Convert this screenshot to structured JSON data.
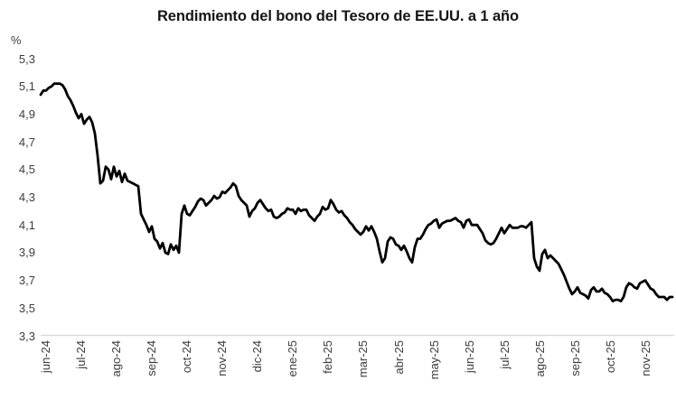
{
  "chart": {
    "title": "Rendimiento del bono del Tesoro de EE.UU. a 1 año",
    "y_unit": "%"
  },
  "chart_data": {
    "type": "line",
    "title": "Rendimiento del bono del Tesoro de EE.UU. a 1 año",
    "xlabel": "",
    "ylabel": "%",
    "ylim": [
      3.3,
      5.3
    ],
    "y_tick_step": 0.2,
    "y_tick_labels": [
      "5,3",
      "5,1",
      "4,9",
      "4,7",
      "4,5",
      "4,3",
      "4,1",
      "3,9",
      "3,7",
      "3,5",
      "3,3"
    ],
    "y_tick_values": [
      5.3,
      5.1,
      4.9,
      4.7,
      4.5,
      4.3,
      4.1,
      3.9,
      3.7,
      3.5,
      3.3
    ],
    "x_tick_labels": [
      "jun-24",
      "jul-24",
      "ago-24",
      "sep-24",
      "oct-24",
      "nov-24",
      "dic-24",
      "ene-25",
      "feb-25",
      "mar-25",
      "abr-25",
      "may-25",
      "jun-25",
      "jul-25",
      "ago-25",
      "sep-25",
      "oct-25",
      "nov-25"
    ],
    "grid": false,
    "legend": false,
    "background": "#ffffff",
    "axis_color": "#d9d9d9",
    "line_color": "#000000",
    "series": [
      {
        "name": "Rendimiento del bono del Tesoro de EE.UU. a 1 año (%)",
        "x_span_months": [
          "jun-24",
          "nov-25"
        ],
        "note": "valores muestreados uniformemente de jun-24 a nov-25",
        "values": [
          5.04,
          5.07,
          5.07,
          5.09,
          5.1,
          5.12,
          5.12,
          5.12,
          5.11,
          5.08,
          5.03,
          5.0,
          4.96,
          4.91,
          4.87,
          4.9,
          4.83,
          4.86,
          4.88,
          4.84,
          4.76,
          4.6,
          4.4,
          4.42,
          4.52,
          4.5,
          4.43,
          4.52,
          4.45,
          4.49,
          4.41,
          4.47,
          4.42,
          4.41,
          4.4,
          4.39,
          4.38,
          4.18,
          4.14,
          4.1,
          4.05,
          4.09,
          4.0,
          3.98,
          3.93,
          3.97,
          3.9,
          3.89,
          3.96,
          3.92,
          3.95,
          3.9,
          4.18,
          4.24,
          4.18,
          4.17,
          4.2,
          4.23,
          4.27,
          4.29,
          4.28,
          4.24,
          4.26,
          4.28,
          4.31,
          4.29,
          4.3,
          4.34,
          4.33,
          4.35,
          4.37,
          4.4,
          4.38,
          4.31,
          4.28,
          4.26,
          4.24,
          4.16,
          4.2,
          4.22,
          4.26,
          4.28,
          4.25,
          4.22,
          4.2,
          4.21,
          4.16,
          4.15,
          4.16,
          4.18,
          4.19,
          4.22,
          4.21,
          4.21,
          4.18,
          4.22,
          4.2,
          4.21,
          4.21,
          4.17,
          4.15,
          4.13,
          4.16,
          4.18,
          4.23,
          4.21,
          4.22,
          4.28,
          4.25,
          4.21,
          4.19,
          4.2,
          4.17,
          4.15,
          4.12,
          4.1,
          4.07,
          4.05,
          4.03,
          4.05,
          4.09,
          4.06,
          4.09,
          4.05,
          4.0,
          3.91,
          3.83,
          3.86,
          3.98,
          4.01,
          4.0,
          3.96,
          3.95,
          3.92,
          3.95,
          3.91,
          3.86,
          3.83,
          3.94,
          4.0,
          4.0,
          4.03,
          4.07,
          4.1,
          4.11,
          4.13,
          4.14,
          4.08,
          4.11,
          4.12,
          4.13,
          4.13,
          4.14,
          4.15,
          4.13,
          4.12,
          4.08,
          4.13,
          4.14,
          4.1,
          4.1,
          4.1,
          4.07,
          4.04,
          3.99,
          3.97,
          3.96,
          3.97,
          4.0,
          4.04,
          4.08,
          4.04,
          4.07,
          4.1,
          4.08,
          4.08,
          4.08,
          4.09,
          4.09,
          4.08,
          4.1,
          4.12,
          3.86,
          3.8,
          3.77,
          3.89,
          3.92,
          3.86,
          3.88,
          3.86,
          3.84,
          3.82,
          3.78,
          3.74,
          3.69,
          3.64,
          3.6,
          3.62,
          3.65,
          3.61,
          3.6,
          3.59,
          3.57,
          3.63,
          3.65,
          3.62,
          3.62,
          3.64,
          3.61,
          3.6,
          3.58,
          3.55,
          3.56,
          3.56,
          3.55,
          3.58,
          3.65,
          3.68,
          3.67,
          3.65,
          3.64,
          3.68,
          3.69,
          3.7,
          3.67,
          3.64,
          3.63,
          3.6,
          3.58,
          3.58,
          3.58,
          3.56,
          3.58,
          3.58
        ]
      }
    ]
  }
}
